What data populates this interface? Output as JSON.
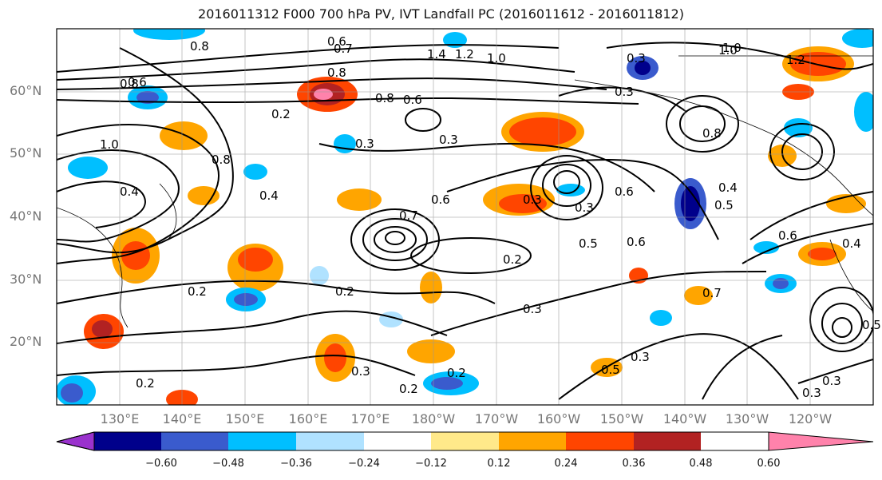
{
  "title": "2016011312 F000 700 hPa PV, IVT Landfall PC (2016011612 - 2016011812)",
  "lat_labels": [
    "60°N",
    "50°N",
    "40°N",
    "30°N",
    "20°N"
  ],
  "lon_labels": [
    "130°E",
    "140°E",
    "150°E",
    "160°E",
    "170°E",
    "180°W",
    "170°W",
    "160°W",
    "150°W",
    "140°W",
    "130°W",
    "120°W"
  ],
  "colorbar": {
    "tick_labels": [
      "−0.60",
      "−0.48",
      "−0.36",
      "−0.24",
      "−0.12",
      "0.12",
      "0.24",
      "0.36",
      "0.48",
      "0.60"
    ],
    "colors": [
      "#9a32cd",
      "#00008b",
      "#3a5bcd",
      "#00bfff",
      "#b0e2ff",
      "#ffffff",
      "#ffe98a",
      "#ffa500",
      "#ff4500",
      "#b22222",
      "#ff82ab"
    ]
  },
  "contour_labels": [
    "0.6",
    "0.8",
    "0.7",
    "1.4",
    "1.2",
    "1.0",
    "1.0",
    "0.3",
    "0.8",
    "1.0",
    "0.6",
    "0.8",
    "1.2",
    "0.8",
    "0.6",
    "0.3",
    "0.2",
    "0.3",
    "1.0",
    "0.8",
    "0.4",
    "0.3",
    "0.6",
    "0.4",
    "0.7",
    "0.6",
    "0.3",
    "0.5",
    "0.6",
    "0.8",
    "0.5",
    "0.6",
    "0.4",
    "0.2",
    "0.4",
    "0.3",
    "0.2",
    "0.7",
    "0.3",
    "0.5",
    "0.3",
    "0.2",
    "0.3",
    "0.2",
    "0.3",
    "0.2",
    "0.5",
    "0.3",
    "0.2"
  ]
}
